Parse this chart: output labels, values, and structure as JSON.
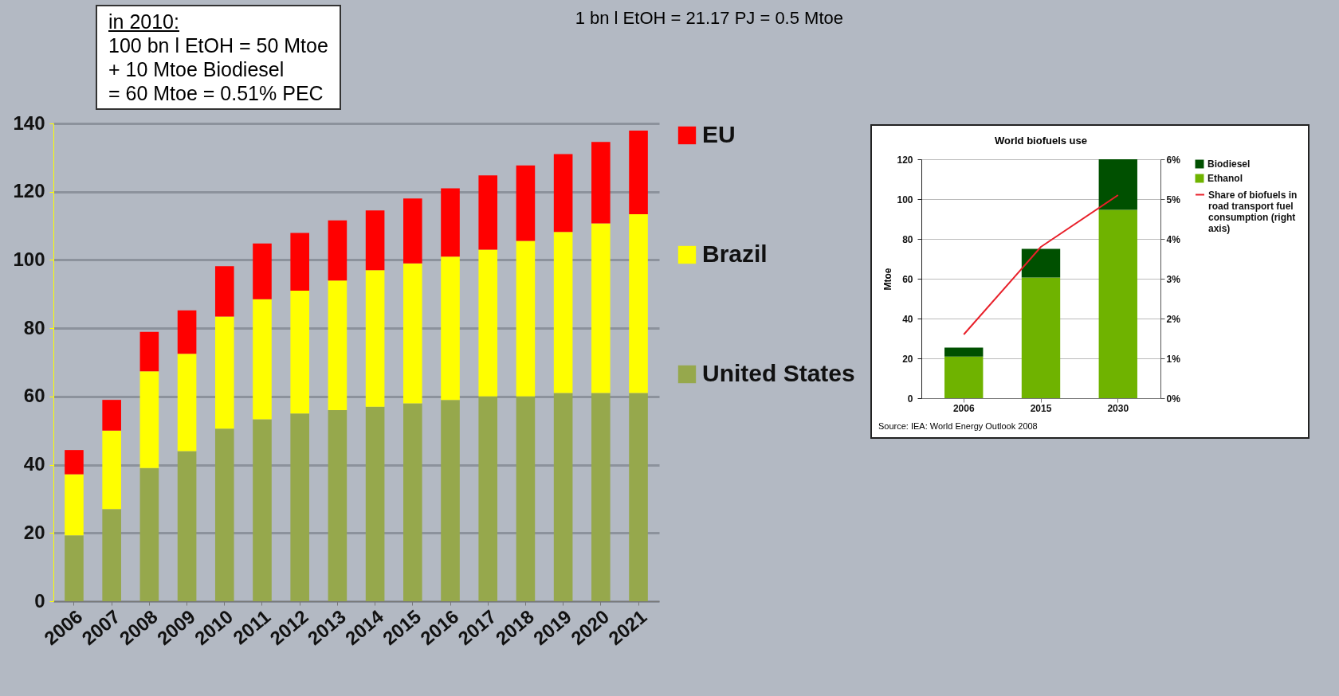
{
  "chart_data": [
    {
      "type": "bar",
      "stacked": true,
      "categories": [
        "2006",
        "2007",
        "2008",
        "2009",
        "2010",
        "2011",
        "2012",
        "2013",
        "2014",
        "2015",
        "2016",
        "2017",
        "2018",
        "2019",
        "2020",
        "2021"
      ],
      "series": [
        {
          "name": "United States",
          "color": "#96a84c",
          "values": [
            19.3,
            27,
            39,
            44,
            50.6,
            53.3,
            55,
            56,
            57,
            58,
            59,
            60,
            60,
            61,
            61,
            61
          ]
        },
        {
          "name": "Brazil",
          "color": "#ffff00",
          "values": [
            17.9,
            23,
            28.4,
            28.5,
            32.8,
            35.2,
            36,
            38,
            40,
            41,
            42,
            43,
            45.6,
            47.2,
            49.7,
            52.4
          ]
        },
        {
          "name": "EU",
          "color": "#ff0000",
          "values": [
            7.1,
            9,
            11.5,
            12.7,
            14.8,
            16.3,
            16.9,
            17.6,
            17.5,
            19,
            20,
            21.8,
            22.1,
            22.8,
            23.9,
            24.5
          ]
        }
      ],
      "ylim": [
        0,
        140
      ],
      "yticks": [
        0,
        20,
        40,
        60,
        80,
        100,
        120,
        140
      ],
      "grid": "y",
      "legend": "right",
      "annotations": [
        "in 2010:",
        "100 bn l EtOH = 50 Mtoe",
        "+ 10 Mtoe Biodiesel",
        "= 60 Mtoe = 0.51% PEC",
        "1 bn l EtOH = 21.17 PJ = 0.5 Mtoe"
      ]
    },
    {
      "type": "bar",
      "stacked": true,
      "title": "World biofuels use",
      "ylabel": "Mtoe",
      "categories": [
        "2006",
        "2015",
        "2030"
      ],
      "series": [
        {
          "name": "Ethanol",
          "color": "#6fb300",
          "values": [
            20.9,
            60.6,
            94.6
          ]
        },
        {
          "name": "Biodiesel",
          "color": "#005000",
          "values": [
            4.5,
            14.4,
            25.4
          ]
        },
        {
          "name": "Share of biofuels in road transport fuel consumption (right axis)",
          "type": "line",
          "axis": "y2",
          "color": "#e8202a",
          "values": [
            1.6,
            3.8,
            5.1
          ]
        }
      ],
      "ylim": [
        0,
        120
      ],
      "yticks": [
        0,
        20,
        40,
        60,
        80,
        100,
        120
      ],
      "y2lim": [
        0,
        6
      ],
      "y2ticks": [
        {
          "value": 0,
          "label": "0%"
        },
        {
          "value": 1,
          "label": "1%"
        },
        {
          "value": 2,
          "label": "2%"
        },
        {
          "value": 3,
          "label": "3%"
        },
        {
          "value": 4,
          "label": "4%"
        },
        {
          "value": 5,
          "label": "5%"
        },
        {
          "value": 6,
          "label": "6%"
        }
      ],
      "grid": "y",
      "legend": "right",
      "annotations": [
        "Source: IEA: World Energy Outlook 2008"
      ]
    }
  ]
}
